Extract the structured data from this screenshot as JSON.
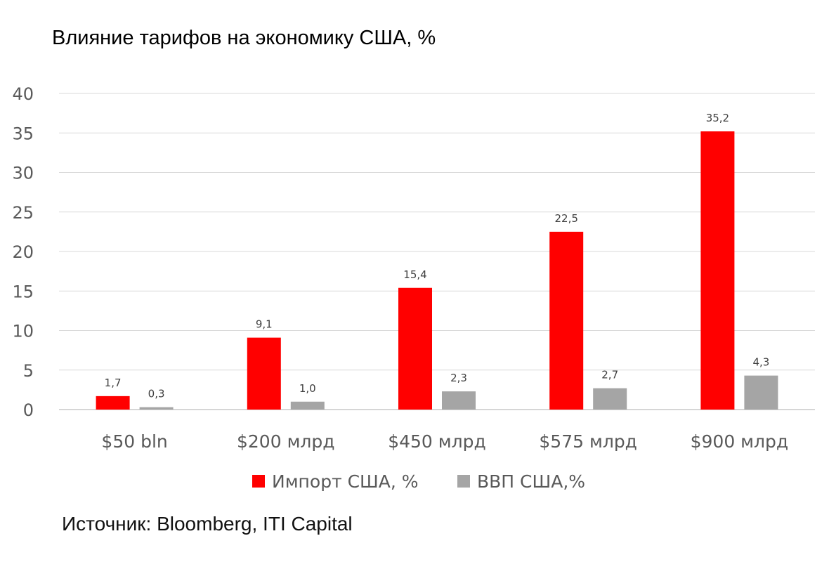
{
  "chart_data": {
    "type": "bar",
    "title": "Влияние тарифов на экономику США, %",
    "categories": [
      "$50 bln",
      "$200 млрд",
      "$450 млрд",
      "$575 млрд",
      "$900 млрд"
    ],
    "series": [
      {
        "name": "Импорт США, %",
        "color": "#FF0000",
        "values": [
          1.7,
          9.1,
          15.4,
          22.5,
          35.2
        ],
        "labels": [
          "1,7",
          "9,1",
          "15,4",
          "22,5",
          "35,2"
        ]
      },
      {
        "name": "ВВП США,%",
        "color": "#A5A5A5",
        "values": [
          0.3,
          1.0,
          2.3,
          2.7,
          4.3
        ],
        "labels": [
          "0,3",
          "1,0",
          "2,3",
          "2,7",
          "4,3"
        ]
      }
    ],
    "yticks": [
      0,
      5,
      10,
      15,
      20,
      25,
      30,
      35,
      40
    ],
    "ylim": [
      0,
      40
    ],
    "grid": true,
    "legend": "bottom"
  },
  "source": "Источник: Bloomberg, ITI Capital"
}
